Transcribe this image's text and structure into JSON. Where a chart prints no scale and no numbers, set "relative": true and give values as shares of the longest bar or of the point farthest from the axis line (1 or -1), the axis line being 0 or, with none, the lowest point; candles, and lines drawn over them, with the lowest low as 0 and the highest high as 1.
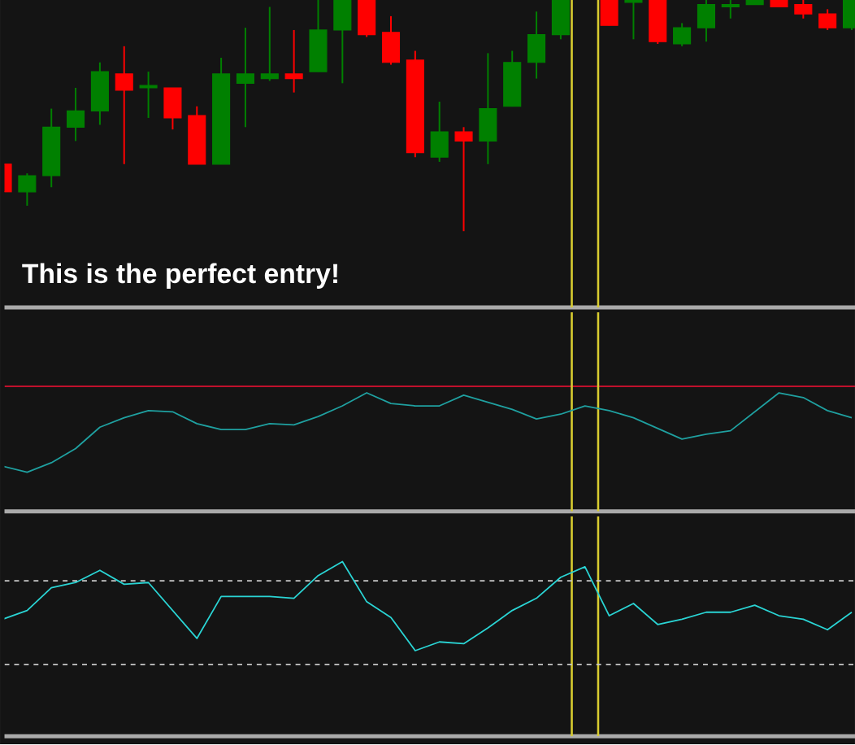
{
  "chart_data": [
    {
      "type": "candlestick",
      "relative": true,
      "categories": [
        null,
        null,
        null,
        null,
        null,
        null,
        null,
        null,
        null,
        null,
        null,
        null,
        null,
        null,
        null,
        null,
        null,
        null,
        null,
        null,
        null,
        null,
        null,
        null,
        null,
        null,
        null,
        null,
        null,
        null,
        null,
        null,
        null,
        null,
        null,
        null
      ],
      "ohlc": [
        [
          0.29,
          0.29,
          0.17,
          0.17
        ],
        [
          0.17,
          0.25,
          0.11,
          0.24
        ],
        [
          0.24,
          0.53,
          0.19,
          0.45
        ],
        [
          0.45,
          0.62,
          0.39,
          0.52
        ],
        [
          0.52,
          0.73,
          0.46,
          0.69
        ],
        [
          0.68,
          0.8,
          0.29,
          0.61
        ],
        [
          0.62,
          0.69,
          0.49,
          0.63
        ],
        [
          0.62,
          0.62,
          0.44,
          0.49
        ],
        [
          0.5,
          0.54,
          0.29,
          0.29
        ],
        [
          0.29,
          0.75,
          0.29,
          0.68
        ],
        [
          0.64,
          0.88,
          0.45,
          0.68
        ],
        [
          0.66,
          0.97,
          0.65,
          0.68
        ],
        [
          0.68,
          0.87,
          0.6,
          0.66
        ],
        [
          0.69,
          1.0,
          0.69,
          0.87
        ],
        [
          0.87,
          1.0,
          0.64,
          1.0
        ],
        [
          1.0,
          1.0,
          0.84,
          0.85
        ],
        [
          0.86,
          0.93,
          0.72,
          0.73
        ],
        [
          0.74,
          0.78,
          0.32,
          0.34
        ],
        [
          0.32,
          0.56,
          0.3,
          0.43
        ],
        [
          0.43,
          0.45,
          0.0,
          0.39
        ],
        [
          0.39,
          0.77,
          0.29,
          0.53
        ],
        [
          0.54,
          0.78,
          0.54,
          0.73
        ],
        [
          0.73,
          0.95,
          0.66,
          0.85
        ],
        [
          0.85,
          1.0,
          0.83,
          1.0
        ],
        null,
        [
          1.0,
          1.0,
          0.89,
          0.89
        ],
        [
          0.99,
          1.0,
          0.83,
          1.0
        ],
        [
          1.0,
          1.0,
          0.81,
          0.82
        ],
        [
          0.81,
          0.9,
          0.8,
          0.88
        ],
        [
          0.88,
          1.0,
          0.82,
          0.98
        ],
        [
          0.97,
          1.0,
          0.92,
          0.98
        ],
        [
          0.98,
          1.0,
          0.98,
          1.0
        ],
        [
          1.0,
          1.0,
          0.97,
          0.97
        ],
        [
          0.98,
          1.0,
          0.92,
          0.94
        ],
        [
          0.94,
          0.96,
          0.87,
          0.88
        ],
        [
          0.88,
          1.0,
          0.87,
          1.0
        ]
      ],
      "colors": [
        "#ff0000",
        "#008000",
        "#008000",
        "#008000",
        "#008000",
        "#ff0000",
        "#008000",
        "#ff0000",
        "#ff0000",
        "#008000",
        "#008000",
        "#008000",
        "#ff0000",
        "#008000",
        "#008000",
        "#ff0000",
        "#ff0000",
        "#ff0000",
        "#008000",
        "#ff0000",
        "#008000",
        "#008000",
        "#008000",
        "#008000",
        null,
        "#ff0000",
        "#008000",
        "#ff0000",
        "#008000",
        "#008000",
        "#008000",
        "#008000",
        "#ff0000",
        "#ff0000",
        "#ff0000",
        "#008000"
      ],
      "annotations": [
        "This is the perfect entry!"
      ]
    },
    {
      "type": "line",
      "relative": true,
      "marker": "none",
      "line_style": "solid",
      "categories": [
        null,
        null,
        null,
        null,
        null,
        null,
        null,
        null,
        null,
        null,
        null,
        null,
        null,
        null,
        null,
        null,
        null,
        null,
        null,
        null,
        null,
        null,
        null,
        null,
        null,
        null,
        null,
        null,
        null,
        null,
        null,
        null,
        null,
        null,
        null,
        null
      ],
      "series": [
        {
          "color": "#1fa0a0",
          "values": [
            0.38,
            0.33,
            0.41,
            0.53,
            0.71,
            0.79,
            0.85,
            0.84,
            0.74,
            0.69,
            0.69,
            0.74,
            0.73,
            0.8,
            0.89,
            1,
            0.91,
            0.89,
            0.89,
            0.98,
            0.92,
            0.86,
            0.78,
            0.82,
            0.89,
            0.85,
            0.79,
            0.7,
            0.61,
            0.65,
            0.68,
            0.84,
            1,
            0.96,
            0.85,
            0.79
          ]
        }
      ]
    },
    {
      "type": "line",
      "relative": true,
      "marker": "none",
      "line_style": "solid",
      "categories": [
        null,
        null,
        null,
        null,
        null,
        null,
        null,
        null,
        null,
        null,
        null,
        null,
        null,
        null,
        null,
        null,
        null,
        null,
        null,
        null,
        null,
        null,
        null,
        null,
        null,
        null,
        null,
        null,
        null,
        null,
        null,
        null,
        null,
        null,
        null,
        null
      ],
      "series": [
        {
          "color": "#2ad4d4",
          "values": [
            0.67,
            0.72,
            0.85,
            0.88,
            0.95,
            0.87,
            0.88,
            0.72,
            0.56,
            0.8,
            0.8,
            0.8,
            0.79,
            0.92,
            1,
            0.77,
            0.68,
            0.49,
            0.54,
            0.53,
            0.62,
            0.72,
            0.79,
            0.91,
            0.97,
            0.69,
            0.76,
            0.64,
            0.67,
            0.71,
            0.71,
            0.75,
            0.69,
            0.67,
            0.61,
            0.71
          ]
        }
      ],
      "ref_lines": [
        {
          "axis": "y",
          "value": 0.89,
          "color": "#c8c8c8",
          "line_style": "dashed"
        },
        {
          "axis": "y",
          "value": 0.41,
          "color": "#c8c8c8",
          "line_style": "dashed"
        }
      ]
    }
  ]
}
